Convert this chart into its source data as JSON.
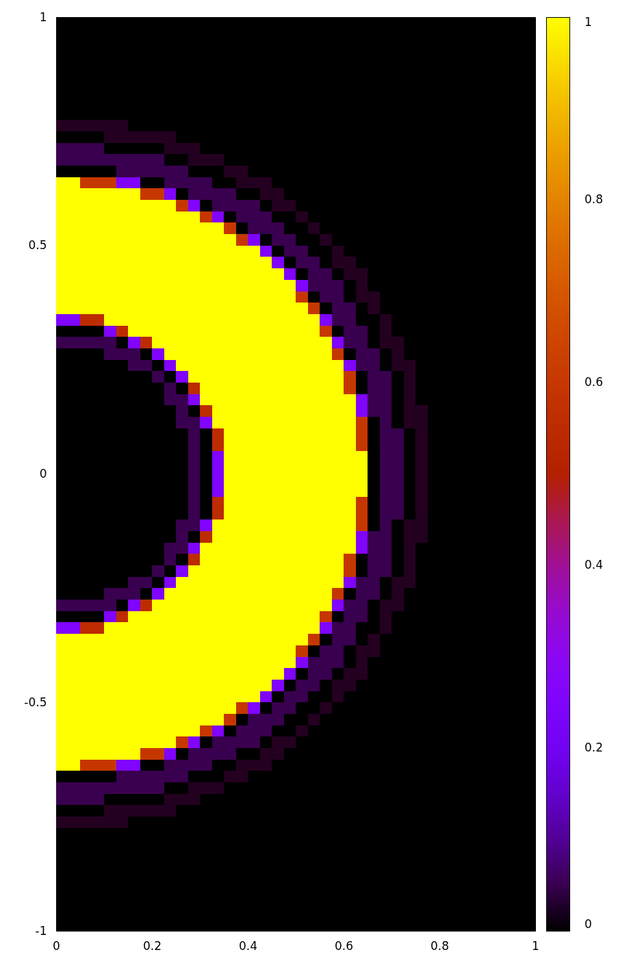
{
  "chart_data": {
    "type": "heatmap",
    "x": [
      0.0125,
      0.0375,
      0.0625,
      0.0875,
      0.1125,
      0.1375,
      0.1625,
      0.1875,
      0.2125,
      0.2375,
      0.2625,
      0.2875,
      0.3125,
      0.3375,
      0.3625,
      0.3875,
      0.4125,
      0.4375,
      0.4625,
      0.4875,
      0.5125,
      0.5375,
      0.5625,
      0.5875,
      0.6125,
      0.6375,
      0.6625,
      0.6875,
      0.7125,
      0.7375,
      0.7625,
      0.7875,
      0.8125,
      0.8375,
      0.8625,
      0.8875,
      0.9125,
      0.9375,
      0.9625,
      0.9875
    ],
    "y": [
      0.9875,
      0.9625,
      0.9375,
      0.9125,
      0.8875,
      0.8625,
      0.8375,
      0.8125,
      0.7875,
      0.7625,
      0.7375,
      0.7125,
      0.6875,
      0.6625,
      0.6375,
      0.6125,
      0.5875,
      0.5625,
      0.5375,
      0.5125,
      0.4875,
      0.4625,
      0.4375,
      0.4125,
      0.3875,
      0.3625,
      0.3375,
      0.3125,
      0.2875,
      0.2625,
      0.2375,
      0.2125,
      0.1875,
      0.1625,
      0.1375,
      0.1125,
      0.0875,
      0.0625,
      0.0375,
      0.0125,
      -0.0125,
      -0.0375,
      -0.0625,
      -0.0875,
      -0.1125,
      -0.1375,
      -0.1625,
      -0.1875,
      -0.2125,
      -0.2375,
      -0.2625,
      -0.2875,
      -0.3125,
      -0.3375,
      -0.3625,
      -0.3875,
      -0.4125,
      -0.4375,
      -0.4625,
      -0.4875,
      -0.5125,
      -0.5375,
      -0.5625,
      -0.5875,
      -0.6125,
      -0.6375,
      -0.6625,
      -0.6875,
      -0.7125,
      -0.7375,
      -0.7625,
      -0.7875,
      -0.8125,
      -0.8375,
      -0.8625,
      -0.8875,
      -0.9125,
      -0.9375,
      -0.9625,
      -0.9875
    ],
    "xlim": [
      0,
      1
    ],
    "xticks": [
      0,
      0.2,
      0.4,
      0.6,
      0.8,
      1
    ],
    "ylim": [
      -1,
      1
    ],
    "yticks": [
      -1,
      -0.5,
      0,
      0.5,
      1
    ],
    "clim": [
      0,
      1
    ],
    "cticks": [
      0,
      0.2,
      0.4,
      0.6,
      0.8,
      1
    ],
    "cells": [
      [
        0,
        0,
        0,
        0,
        0,
        0,
        0,
        0,
        0,
        0,
        0,
        0,
        0,
        0,
        0,
        0,
        0,
        0,
        0,
        0,
        0,
        0,
        0,
        0,
        0,
        0,
        0,
        0,
        0,
        0,
        0,
        0,
        0,
        0,
        0,
        0,
        0,
        0,
        0,
        0
      ],
      [
        0,
        0,
        0,
        0,
        0,
        0,
        0,
        0,
        0,
        0,
        0,
        0,
        0,
        0,
        0,
        0,
        0,
        0,
        0,
        0,
        0,
        0,
        0,
        0,
        0,
        0,
        0,
        0,
        0,
        0,
        0,
        0,
        0,
        0,
        0,
        0,
        0,
        0,
        0,
        0
      ],
      [
        0,
        0,
        0,
        0,
        0,
        0,
        0,
        0,
        0,
        0,
        0,
        0,
        0,
        0,
        0,
        0,
        0,
        0,
        0,
        0,
        0,
        0,
        0,
        0,
        0,
        0,
        0,
        0,
        0,
        0,
        0,
        0,
        0,
        0,
        0,
        0,
        0,
        0,
        0,
        0
      ],
      [
        0,
        0,
        0,
        0,
        0,
        0,
        0,
        0,
        0,
        0,
        0,
        0,
        0,
        0,
        0,
        0,
        0,
        0,
        0,
        0,
        0,
        0,
        0,
        0,
        0,
        0,
        0,
        0,
        0,
        0,
        0,
        0,
        0,
        0,
        0,
        0,
        0,
        0,
        0,
        0
      ],
      [
        0,
        0,
        0,
        0,
        0,
        0,
        0,
        0,
        0,
        0,
        0,
        0,
        0,
        0,
        0,
        0,
        0,
        0,
        0,
        0,
        0,
        0,
        0,
        0,
        0,
        0,
        0,
        0,
        0,
        0,
        0,
        0,
        0,
        0,
        0,
        0,
        0,
        0,
        0,
        0
      ],
      [
        0,
        0,
        0,
        0,
        0,
        0,
        0,
        0,
        0,
        0,
        0,
        0,
        0,
        0,
        0,
        0,
        0,
        0,
        0,
        0,
        0,
        0,
        0,
        0,
        0,
        0,
        0,
        0,
        0,
        0,
        0,
        0,
        0,
        0,
        0,
        0,
        0,
        0,
        0,
        0
      ],
      [
        0,
        0,
        0,
        0,
        0,
        0,
        0,
        0,
        0,
        0,
        0,
        0,
        0,
        0,
        0,
        0,
        0,
        0,
        0,
        0,
        0,
        0,
        0,
        0,
        0,
        0,
        0,
        0,
        0,
        0,
        0,
        0,
        0,
        0,
        0,
        0,
        0,
        0,
        0,
        0
      ],
      [
        0,
        0,
        0,
        0,
        0,
        0,
        0,
        0,
        0,
        0,
        0,
        0,
        0,
        0,
        0,
        0,
        0,
        0,
        0,
        0,
        0,
        0,
        0,
        0,
        0,
        0,
        0,
        0,
        0,
        0,
        0,
        0,
        0,
        0,
        0,
        0,
        0,
        0,
        0,
        0
      ],
      [
        0,
        0,
        0,
        0,
        0,
        0,
        0,
        0,
        0,
        0,
        0,
        0,
        0,
        0,
        0,
        0,
        0,
        0,
        0,
        0,
        0,
        0,
        0,
        0,
        0,
        0,
        0,
        0,
        0,
        0,
        0,
        0,
        0,
        0,
        0,
        0,
        0,
        0,
        0,
        0
      ],
      [
        0.02,
        0.02,
        0.02,
        0.02,
        0.02,
        0.02,
        0,
        0,
        0,
        0,
        0,
        0,
        0,
        0,
        0,
        0,
        0,
        0,
        0,
        0,
        0,
        0,
        0,
        0,
        0,
        0,
        0,
        0,
        0,
        0,
        0,
        0,
        0,
        0,
        0,
        0,
        0,
        0,
        0,
        0
      ],
      [
        0,
        0,
        0,
        0,
        0.02,
        0.02,
        0.02,
        0.02,
        0.02,
        0.02,
        0,
        0,
        0,
        0,
        0,
        0,
        0,
        0,
        0,
        0,
        0,
        0,
        0,
        0,
        0,
        0,
        0,
        0,
        0,
        0,
        0,
        0,
        0,
        0,
        0,
        0,
        0,
        0,
        0,
        0
      ],
      [
        0.05,
        0.05,
        0.05,
        0.05,
        0,
        0,
        0,
        0,
        0,
        0.02,
        0.02,
        0.02,
        0,
        0,
        0,
        0,
        0,
        0,
        0,
        0,
        0,
        0,
        0,
        0,
        0,
        0,
        0,
        0,
        0,
        0,
        0,
        0,
        0,
        0,
        0,
        0,
        0,
        0,
        0,
        0
      ],
      [
        0.05,
        0.05,
        0.05,
        0.05,
        0.05,
        0.05,
        0.05,
        0.05,
        0.05,
        0,
        0,
        0.02,
        0.02,
        0.02,
        0,
        0,
        0,
        0,
        0,
        0,
        0,
        0,
        0,
        0,
        0,
        0,
        0,
        0,
        0,
        0,
        0,
        0,
        0,
        0,
        0,
        0,
        0,
        0,
        0,
        0
      ],
      [
        0,
        0,
        0,
        0,
        0,
        0.05,
        0.05,
        0.05,
        0.05,
        0.05,
        0.05,
        0,
        0,
        0,
        0.02,
        0.02,
        0,
        0,
        0,
        0,
        0,
        0,
        0,
        0,
        0,
        0,
        0,
        0,
        0,
        0,
        0,
        0,
        0,
        0,
        0,
        0,
        0,
        0,
        0,
        0
      ],
      [
        1,
        1,
        0.6,
        0.6,
        0.6,
        0.25,
        0.25,
        0,
        0,
        0.05,
        0.05,
        0.05,
        0.05,
        0,
        0,
        0.02,
        0.02,
        0.02,
        0,
        0,
        0,
        0,
        0,
        0,
        0,
        0,
        0,
        0,
        0,
        0,
        0,
        0,
        0,
        0,
        0,
        0,
        0,
        0,
        0,
        0
      ],
      [
        1,
        1,
        1,
        1,
        1,
        1,
        1,
        0.6,
        0.6,
        0.25,
        0,
        0.05,
        0.05,
        0.05,
        0.05,
        0,
        0,
        0.02,
        0.02,
        0,
        0,
        0,
        0,
        0,
        0,
        0,
        0,
        0,
        0,
        0,
        0,
        0,
        0,
        0,
        0,
        0,
        0,
        0,
        0,
        0
      ],
      [
        1,
        1,
        1,
        1,
        1,
        1,
        1,
        1,
        1,
        1,
        0.6,
        0.25,
        0,
        0.05,
        0.05,
        0.05,
        0.05,
        0,
        0.02,
        0.02,
        0,
        0,
        0,
        0,
        0,
        0,
        0,
        0,
        0,
        0,
        0,
        0,
        0,
        0,
        0,
        0,
        0,
        0,
        0,
        0
      ],
      [
        1,
        1,
        1,
        1,
        1,
        1,
        1,
        1,
        1,
        1,
        1,
        1,
        0.6,
        0.25,
        0,
        0.05,
        0.05,
        0.05,
        0,
        0,
        0.02,
        0,
        0,
        0,
        0,
        0,
        0,
        0,
        0,
        0,
        0,
        0,
        0,
        0,
        0,
        0,
        0,
        0,
        0,
        0
      ],
      [
        1,
        1,
        1,
        1,
        1,
        1,
        1,
        1,
        1,
        1,
        1,
        1,
        1,
        1,
        0.6,
        0,
        0.05,
        0.05,
        0.05,
        0,
        0,
        0.02,
        0,
        0,
        0,
        0,
        0,
        0,
        0,
        0,
        0,
        0,
        0,
        0,
        0,
        0,
        0,
        0,
        0,
        0
      ],
      [
        1,
        1,
        1,
        1,
        1,
        1,
        1,
        1,
        1,
        1,
        1,
        1,
        1,
        1,
        1,
        0.6,
        0.25,
        0,
        0.05,
        0.05,
        0,
        0,
        0.02,
        0,
        0,
        0,
        0,
        0,
        0,
        0,
        0,
        0,
        0,
        0,
        0,
        0,
        0,
        0,
        0,
        0
      ],
      [
        1,
        1,
        1,
        1,
        1,
        1,
        1,
        1,
        1,
        1,
        1,
        1,
        1,
        1,
        1,
        1,
        1,
        0.25,
        0,
        0.05,
        0.05,
        0,
        0,
        0.02,
        0,
        0,
        0,
        0,
        0,
        0,
        0,
        0,
        0,
        0,
        0,
        0,
        0,
        0,
        0,
        0
      ],
      [
        1,
        1,
        1,
        1,
        1,
        1,
        1,
        1,
        1,
        1,
        1,
        1,
        1,
        1,
        1,
        1,
        1,
        1,
        0.25,
        0,
        0.05,
        0.05,
        0,
        0.02,
        0.02,
        0,
        0,
        0,
        0,
        0,
        0,
        0,
        0,
        0,
        0,
        0,
        0,
        0,
        0,
        0
      ],
      [
        1,
        1,
        1,
        1,
        1,
        1,
        1,
        1,
        1,
        1,
        1,
        1,
        1,
        1,
        1,
        1,
        1,
        1,
        1,
        0.25,
        0,
        0.05,
        0.05,
        0,
        0.02,
        0.02,
        0,
        0,
        0,
        0,
        0,
        0,
        0,
        0,
        0,
        0,
        0,
        0,
        0,
        0
      ],
      [
        1,
        1,
        1,
        1,
        1,
        1,
        1,
        1,
        1,
        1,
        1,
        1,
        1,
        1,
        1,
        1,
        1,
        1,
        1,
        1,
        0.25,
        0.05,
        0.05,
        0.05,
        0,
        0.02,
        0,
        0,
        0,
        0,
        0,
        0,
        0,
        0,
        0,
        0,
        0,
        0,
        0,
        0
      ],
      [
        1,
        1,
        1,
        1,
        1,
        1,
        1,
        1,
        1,
        1,
        1,
        1,
        1,
        1,
        1,
        1,
        1,
        1,
        1,
        1,
        0.6,
        0,
        0.05,
        0.05,
        0,
        0.02,
        0.02,
        0,
        0,
        0,
        0,
        0,
        0,
        0,
        0,
        0,
        0,
        0,
        0,
        0
      ],
      [
        1,
        1,
        1,
        1,
        1,
        1,
        1,
        1,
        1,
        1,
        1,
        1,
        1,
        1,
        1,
        1,
        1,
        1,
        1,
        1,
        1,
        0.6,
        0,
        0.05,
        0.05,
        0,
        0.02,
        0,
        0,
        0,
        0,
        0,
        0,
        0,
        0,
        0,
        0,
        0,
        0,
        0
      ],
      [
        0.25,
        0.25,
        0.55,
        0.55,
        1,
        1,
        1,
        1,
        1,
        1,
        1,
        1,
        1,
        1,
        1,
        1,
        1,
        1,
        1,
        1,
        1,
        1,
        0.25,
        0.05,
        0.05,
        0,
        0,
        0.02,
        0,
        0,
        0,
        0,
        0,
        0,
        0,
        0,
        0,
        0,
        0,
        0
      ],
      [
        0,
        0,
        0,
        0,
        0.25,
        0.55,
        1,
        1,
        1,
        1,
        1,
        1,
        1,
        1,
        1,
        1,
        1,
        1,
        1,
        1,
        1,
        1,
        0.6,
        0,
        0.05,
        0.05,
        0,
        0.02,
        0,
        0,
        0,
        0,
        0,
        0,
        0,
        0,
        0,
        0,
        0,
        0
      ],
      [
        0.05,
        0.05,
        0.05,
        0.05,
        0.05,
        0,
        0.25,
        0.55,
        1,
        1,
        1,
        1,
        1,
        1,
        1,
        1,
        1,
        1,
        1,
        1,
        1,
        1,
        1,
        0.25,
        0.05,
        0.05,
        0,
        0.02,
        0.02,
        0,
        0,
        0,
        0,
        0,
        0,
        0,
        0,
        0,
        0,
        0
      ],
      [
        0,
        0,
        0,
        0,
        0.05,
        0.05,
        0.05,
        0,
        0.25,
        1,
        1,
        1,
        1,
        1,
        1,
        1,
        1,
        1,
        1,
        1,
        1,
        1,
        1,
        0.6,
        0,
        0.05,
        0.05,
        0,
        0.02,
        0,
        0,
        0,
        0,
        0,
        0,
        0,
        0,
        0,
        0,
        0
      ],
      [
        0,
        0,
        0,
        0,
        0,
        0,
        0.05,
        0.05,
        0,
        0.25,
        1,
        1,
        1,
        1,
        1,
        1,
        1,
        1,
        1,
        1,
        1,
        1,
        1,
        1,
        0.25,
        0.05,
        0.05,
        0,
        0.02,
        0.02,
        0,
        0,
        0,
        0,
        0,
        0,
        0,
        0,
        0,
        0
      ],
      [
        0,
        0,
        0,
        0,
        0,
        0,
        0,
        0,
        0.05,
        0,
        0.25,
        1,
        1,
        1,
        1,
        1,
        1,
        1,
        1,
        1,
        1,
        1,
        1,
        1,
        0.6,
        0,
        0.05,
        0.05,
        0,
        0.02,
        0,
        0,
        0,
        0,
        0,
        0,
        0,
        0,
        0,
        0
      ],
      [
        0,
        0,
        0,
        0,
        0,
        0,
        0,
        0,
        0,
        0.05,
        0,
        0.55,
        1,
        1,
        1,
        1,
        1,
        1,
        1,
        1,
        1,
        1,
        1,
        1,
        0.6,
        0,
        0.05,
        0.05,
        0,
        0.02,
        0,
        0,
        0,
        0,
        0,
        0,
        0,
        0,
        0,
        0
      ],
      [
        0,
        0,
        0,
        0,
        0,
        0,
        0,
        0,
        0,
        0.05,
        0.05,
        0.25,
        1,
        1,
        1,
        1,
        1,
        1,
        1,
        1,
        1,
        1,
        1,
        1,
        1,
        0.25,
        0.05,
        0.05,
        0,
        0.02,
        0,
        0,
        0,
        0,
        0,
        0,
        0,
        0,
        0,
        0
      ],
      [
        0,
        0,
        0,
        0,
        0,
        0,
        0,
        0,
        0,
        0,
        0.05,
        0,
        0.55,
        1,
        1,
        1,
        1,
        1,
        1,
        1,
        1,
        1,
        1,
        1,
        1,
        0.25,
        0.05,
        0.05,
        0,
        0.02,
        0.02,
        0,
        0,
        0,
        0,
        0,
        0,
        0,
        0,
        0
      ],
      [
        0,
        0,
        0,
        0,
        0,
        0,
        0,
        0,
        0,
        0,
        0.05,
        0.05,
        0.25,
        1,
        1,
        1,
        1,
        1,
        1,
        1,
        1,
        1,
        1,
        1,
        1,
        0.6,
        0,
        0.05,
        0,
        0.02,
        0.02,
        0,
        0,
        0,
        0,
        0,
        0,
        0,
        0,
        0
      ],
      [
        0,
        0,
        0,
        0,
        0,
        0,
        0,
        0,
        0,
        0,
        0,
        0.05,
        0,
        0.55,
        1,
        1,
        1,
        1,
        1,
        1,
        1,
        1,
        1,
        1,
        1,
        0.6,
        0,
        0.05,
        0.05,
        0,
        0.02,
        0,
        0,
        0,
        0,
        0,
        0,
        0,
        0,
        0
      ],
      [
        0,
        0,
        0,
        0,
        0,
        0,
        0,
        0,
        0,
        0,
        0,
        0.05,
        0,
        0.55,
        1,
        1,
        1,
        1,
        1,
        1,
        1,
        1,
        1,
        1,
        1,
        0.6,
        0,
        0.05,
        0.05,
        0,
        0.02,
        0,
        0,
        0,
        0,
        0,
        0,
        0,
        0,
        0
      ],
      [
        0,
        0,
        0,
        0,
        0,
        0,
        0,
        0,
        0,
        0,
        0,
        0.05,
        0,
        0.25,
        1,
        1,
        1,
        1,
        1,
        1,
        1,
        1,
        1,
        1,
        1,
        1,
        0,
        0.05,
        0.05,
        0,
        0.02,
        0,
        0,
        0,
        0,
        0,
        0,
        0,
        0,
        0
      ],
      [
        0,
        0,
        0,
        0,
        0,
        0,
        0,
        0,
        0,
        0,
        0,
        0.05,
        0,
        0.25,
        1,
        1,
        1,
        1,
        1,
        1,
        1,
        1,
        1,
        1,
        1,
        1,
        0,
        0.05,
        0.05,
        0,
        0.02,
        0,
        0,
        0,
        0,
        0,
        0,
        0,
        0,
        0
      ],
      [
        0,
        0,
        0,
        0,
        0,
        0,
        0,
        0,
        0,
        0,
        0,
        0.05,
        0,
        0.25,
        1,
        1,
        1,
        1,
        1,
        1,
        1,
        1,
        1,
        1,
        1,
        1,
        0,
        0.05,
        0.05,
        0,
        0.02,
        0,
        0,
        0,
        0,
        0,
        0,
        0,
        0,
        0
      ],
      [
        0,
        0,
        0,
        0,
        0,
        0,
        0,
        0,
        0,
        0,
        0,
        0.05,
        0,
        0.25,
        1,
        1,
        1,
        1,
        1,
        1,
        1,
        1,
        1,
        1,
        1,
        1,
        0,
        0.05,
        0.05,
        0,
        0.02,
        0,
        0,
        0,
        0,
        0,
        0,
        0,
        0,
        0
      ],
      [
        0,
        0,
        0,
        0,
        0,
        0,
        0,
        0,
        0,
        0,
        0,
        0.05,
        0,
        0.55,
        1,
        1,
        1,
        1,
        1,
        1,
        1,
        1,
        1,
        1,
        1,
        0.6,
        0,
        0.05,
        0.05,
        0,
        0.02,
        0,
        0,
        0,
        0,
        0,
        0,
        0,
        0,
        0
      ],
      [
        0,
        0,
        0,
        0,
        0,
        0,
        0,
        0,
        0,
        0,
        0,
        0.05,
        0,
        0.55,
        1,
        1,
        1,
        1,
        1,
        1,
        1,
        1,
        1,
        1,
        1,
        0.6,
        0,
        0.05,
        0.05,
        0,
        0.02,
        0,
        0,
        0,
        0,
        0,
        0,
        0,
        0,
        0
      ],
      [
        0,
        0,
        0,
        0,
        0,
        0,
        0,
        0,
        0,
        0,
        0.05,
        0.05,
        0.25,
        1,
        1,
        1,
        1,
        1,
        1,
        1,
        1,
        1,
        1,
        1,
        1,
        0.6,
        0,
        0.05,
        0,
        0.02,
        0.02,
        0,
        0,
        0,
        0,
        0,
        0,
        0,
        0,
        0
      ],
      [
        0,
        0,
        0,
        0,
        0,
        0,
        0,
        0,
        0,
        0,
        0.05,
        0,
        0.55,
        1,
        1,
        1,
        1,
        1,
        1,
        1,
        1,
        1,
        1,
        1,
        1,
        0.25,
        0.05,
        0.05,
        0,
        0.02,
        0.02,
        0,
        0,
        0,
        0,
        0,
        0,
        0,
        0,
        0
      ],
      [
        0,
        0,
        0,
        0,
        0,
        0,
        0,
        0,
        0,
        0.05,
        0.05,
        0.25,
        1,
        1,
        1,
        1,
        1,
        1,
        1,
        1,
        1,
        1,
        1,
        1,
        1,
        0.25,
        0.05,
        0.05,
        0,
        0.02,
        0,
        0,
        0,
        0,
        0,
        0,
        0,
        0,
        0,
        0
      ],
      [
        0,
        0,
        0,
        0,
        0,
        0,
        0,
        0,
        0,
        0.05,
        0,
        0.55,
        1,
        1,
        1,
        1,
        1,
        1,
        1,
        1,
        1,
        1,
        1,
        1,
        0.6,
        0,
        0.05,
        0.05,
        0,
        0.02,
        0,
        0,
        0,
        0,
        0,
        0,
        0,
        0,
        0,
        0
      ],
      [
        0,
        0,
        0,
        0,
        0,
        0,
        0,
        0,
        0.05,
        0,
        0.25,
        1,
        1,
        1,
        1,
        1,
        1,
        1,
        1,
        1,
        1,
        1,
        1,
        1,
        0.6,
        0,
        0.05,
        0.05,
        0,
        0.02,
        0,
        0,
        0,
        0,
        0,
        0,
        0,
        0,
        0,
        0
      ],
      [
        0,
        0,
        0,
        0,
        0,
        0,
        0.05,
        0.05,
        0,
        0.25,
        1,
        1,
        1,
        1,
        1,
        1,
        1,
        1,
        1,
        1,
        1,
        1,
        1,
        1,
        0.25,
        0.05,
        0.05,
        0,
        0.02,
        0.02,
        0,
        0,
        0,
        0,
        0,
        0,
        0,
        0,
        0,
        0
      ],
      [
        0,
        0,
        0,
        0,
        0.05,
        0.05,
        0.05,
        0,
        0.25,
        1,
        1,
        1,
        1,
        1,
        1,
        1,
        1,
        1,
        1,
        1,
        1,
        1,
        1,
        0.6,
        0,
        0.05,
        0.05,
        0,
        0.02,
        0,
        0,
        0,
        0,
        0,
        0,
        0,
        0,
        0,
        0,
        0
      ],
      [
        0.05,
        0.05,
        0.05,
        0.05,
        0.05,
        0,
        0.25,
        0.55,
        1,
        1,
        1,
        1,
        1,
        1,
        1,
        1,
        1,
        1,
        1,
        1,
        1,
        1,
        1,
        0.25,
        0.05,
        0.05,
        0,
        0.02,
        0.02,
        0,
        0,
        0,
        0,
        0,
        0,
        0,
        0,
        0,
        0,
        0
      ],
      [
        0,
        0,
        0,
        0,
        0.25,
        0.55,
        1,
        1,
        1,
        1,
        1,
        1,
        1,
        1,
        1,
        1,
        1,
        1,
        1,
        1,
        1,
        1,
        0.6,
        0,
        0.05,
        0.05,
        0,
        0.02,
        0,
        0,
        0,
        0,
        0,
        0,
        0,
        0,
        0,
        0,
        0,
        0
      ],
      [
        0.25,
        0.25,
        0.55,
        0.55,
        1,
        1,
        1,
        1,
        1,
        1,
        1,
        1,
        1,
        1,
        1,
        1,
        1,
        1,
        1,
        1,
        1,
        1,
        0.25,
        0.05,
        0.05,
        0,
        0,
        0.02,
        0,
        0,
        0,
        0,
        0,
        0,
        0,
        0,
        0,
        0,
        0,
        0
      ],
      [
        1,
        1,
        1,
        1,
        1,
        1,
        1,
        1,
        1,
        1,
        1,
        1,
        1,
        1,
        1,
        1,
        1,
        1,
        1,
        1,
        1,
        0.6,
        0,
        0.05,
        0.05,
        0,
        0.02,
        0,
        0,
        0,
        0,
        0,
        0,
        0,
        0,
        0,
        0,
        0,
        0,
        0
      ],
      [
        1,
        1,
        1,
        1,
        1,
        1,
        1,
        1,
        1,
        1,
        1,
        1,
        1,
        1,
        1,
        1,
        1,
        1,
        1,
        1,
        0.6,
        0,
        0.05,
        0.05,
        0,
        0.02,
        0.02,
        0,
        0,
        0,
        0,
        0,
        0,
        0,
        0,
        0,
        0,
        0,
        0,
        0
      ],
      [
        1,
        1,
        1,
        1,
        1,
        1,
        1,
        1,
        1,
        1,
        1,
        1,
        1,
        1,
        1,
        1,
        1,
        1,
        1,
        1,
        0.25,
        0.05,
        0.05,
        0.05,
        0,
        0.02,
        0,
        0,
        0,
        0,
        0,
        0,
        0,
        0,
        0,
        0,
        0,
        0,
        0,
        0
      ],
      [
        1,
        1,
        1,
        1,
        1,
        1,
        1,
        1,
        1,
        1,
        1,
        1,
        1,
        1,
        1,
        1,
        1,
        1,
        1,
        0.25,
        0,
        0.05,
        0.05,
        0,
        0.02,
        0.02,
        0,
        0,
        0,
        0,
        0,
        0,
        0,
        0,
        0,
        0,
        0,
        0,
        0,
        0
      ],
      [
        1,
        1,
        1,
        1,
        1,
        1,
        1,
        1,
        1,
        1,
        1,
        1,
        1,
        1,
        1,
        1,
        1,
        1,
        0.25,
        0,
        0.05,
        0.05,
        0,
        0.02,
        0.02,
        0,
        0,
        0,
        0,
        0,
        0,
        0,
        0,
        0,
        0,
        0,
        0,
        0,
        0,
        0
      ],
      [
        1,
        1,
        1,
        1,
        1,
        1,
        1,
        1,
        1,
        1,
        1,
        1,
        1,
        1,
        1,
        1,
        1,
        0.25,
        0,
        0.05,
        0.05,
        0,
        0,
        0.02,
        0,
        0,
        0,
        0,
        0,
        0,
        0,
        0,
        0,
        0,
        0,
        0,
        0,
        0,
        0,
        0
      ],
      [
        1,
        1,
        1,
        1,
        1,
        1,
        1,
        1,
        1,
        1,
        1,
        1,
        1,
        1,
        1,
        0.6,
        0.25,
        0,
        0.05,
        0.05,
        0,
        0,
        0.02,
        0,
        0,
        0,
        0,
        0,
        0,
        0,
        0,
        0,
        0,
        0,
        0,
        0,
        0,
        0,
        0,
        0
      ],
      [
        1,
        1,
        1,
        1,
        1,
        1,
        1,
        1,
        1,
        1,
        1,
        1,
        1,
        1,
        0.6,
        0,
        0.05,
        0.05,
        0.05,
        0,
        0,
        0.02,
        0,
        0,
        0,
        0,
        0,
        0,
        0,
        0,
        0,
        0,
        0,
        0,
        0,
        0,
        0,
        0,
        0,
        0
      ],
      [
        1,
        1,
        1,
        1,
        1,
        1,
        1,
        1,
        1,
        1,
        1,
        1,
        0.6,
        0.25,
        0,
        0.05,
        0.05,
        0.05,
        0,
        0,
        0.02,
        0,
        0,
        0,
        0,
        0,
        0,
        0,
        0,
        0,
        0,
        0,
        0,
        0,
        0,
        0,
        0,
        0,
        0,
        0
      ],
      [
        1,
        1,
        1,
        1,
        1,
        1,
        1,
        1,
        1,
        1,
        0.6,
        0.25,
        0,
        0.05,
        0.05,
        0.05,
        0.05,
        0,
        0.02,
        0.02,
        0,
        0,
        0,
        0,
        0,
        0,
        0,
        0,
        0,
        0,
        0,
        0,
        0,
        0,
        0,
        0,
        0,
        0,
        0,
        0
      ],
      [
        1,
        1,
        1,
        1,
        1,
        1,
        1,
        0.6,
        0.6,
        0.25,
        0,
        0.05,
        0.05,
        0.05,
        0.05,
        0,
        0,
        0.02,
        0.02,
        0,
        0,
        0,
        0,
        0,
        0,
        0,
        0,
        0,
        0,
        0,
        0,
        0,
        0,
        0,
        0,
        0,
        0,
        0,
        0,
        0
      ],
      [
        1,
        1,
        0.6,
        0.6,
        0.6,
        0.25,
        0.25,
        0,
        0,
        0.05,
        0.05,
        0.05,
        0.05,
        0,
        0,
        0.02,
        0.02,
        0.02,
        0,
        0,
        0,
        0,
        0,
        0,
        0,
        0,
        0,
        0,
        0,
        0,
        0,
        0,
        0,
        0,
        0,
        0,
        0,
        0,
        0,
        0
      ],
      [
        0,
        0,
        0,
        0,
        0,
        0.05,
        0.05,
        0.05,
        0.05,
        0.05,
        0.05,
        0,
        0,
        0,
        0.02,
        0.02,
        0,
        0,
        0,
        0,
        0,
        0,
        0,
        0,
        0,
        0,
        0,
        0,
        0,
        0,
        0,
        0,
        0,
        0,
        0,
        0,
        0,
        0,
        0,
        0
      ],
      [
        0.05,
        0.05,
        0.05,
        0.05,
        0.05,
        0.05,
        0.05,
        0.05,
        0.05,
        0,
        0,
        0.02,
        0.02,
        0.02,
        0,
        0,
        0,
        0,
        0,
        0,
        0,
        0,
        0,
        0,
        0,
        0,
        0,
        0,
        0,
        0,
        0,
        0,
        0,
        0,
        0,
        0,
        0,
        0,
        0,
        0
      ],
      [
        0.05,
        0.05,
        0.05,
        0.05,
        0,
        0,
        0,
        0,
        0,
        0.02,
        0.02,
        0.02,
        0,
        0,
        0,
        0,
        0,
        0,
        0,
        0,
        0,
        0,
        0,
        0,
        0,
        0,
        0,
        0,
        0,
        0,
        0,
        0,
        0,
        0,
        0,
        0,
        0,
        0,
        0,
        0
      ],
      [
        0,
        0,
        0,
        0,
        0.02,
        0.02,
        0.02,
        0.02,
        0.02,
        0.02,
        0,
        0,
        0,
        0,
        0,
        0,
        0,
        0,
        0,
        0,
        0,
        0,
        0,
        0,
        0,
        0,
        0,
        0,
        0,
        0,
        0,
        0,
        0,
        0,
        0,
        0,
        0,
        0,
        0,
        0
      ],
      [
        0.02,
        0.02,
        0.02,
        0.02,
        0.02,
        0.02,
        0,
        0,
        0,
        0,
        0,
        0,
        0,
        0,
        0,
        0,
        0,
        0,
        0,
        0,
        0,
        0,
        0,
        0,
        0,
        0,
        0,
        0,
        0,
        0,
        0,
        0,
        0,
        0,
        0,
        0,
        0,
        0,
        0,
        0
      ],
      [
        0,
        0,
        0,
        0,
        0,
        0,
        0,
        0,
        0,
        0,
        0,
        0,
        0,
        0,
        0,
        0,
        0,
        0,
        0,
        0,
        0,
        0,
        0,
        0,
        0,
        0,
        0,
        0,
        0,
        0,
        0,
        0,
        0,
        0,
        0,
        0,
        0,
        0,
        0,
        0
      ],
      [
        0,
        0,
        0,
        0,
        0,
        0,
        0,
        0,
        0,
        0,
        0,
        0,
        0,
        0,
        0,
        0,
        0,
        0,
        0,
        0,
        0,
        0,
        0,
        0,
        0,
        0,
        0,
        0,
        0,
        0,
        0,
        0,
        0,
        0,
        0,
        0,
        0,
        0,
        0,
        0
      ],
      [
        0,
        0,
        0,
        0,
        0,
        0,
        0,
        0,
        0,
        0,
        0,
        0,
        0,
        0,
        0,
        0,
        0,
        0,
        0,
        0,
        0,
        0,
        0,
        0,
        0,
        0,
        0,
        0,
        0,
        0,
        0,
        0,
        0,
        0,
        0,
        0,
        0,
        0,
        0,
        0
      ],
      [
        0,
        0,
        0,
        0,
        0,
        0,
        0,
        0,
        0,
        0,
        0,
        0,
        0,
        0,
        0,
        0,
        0,
        0,
        0,
        0,
        0,
        0,
        0,
        0,
        0,
        0,
        0,
        0,
        0,
        0,
        0,
        0,
        0,
        0,
        0,
        0,
        0,
        0,
        0,
        0
      ],
      [
        0,
        0,
        0,
        0,
        0,
        0,
        0,
        0,
        0,
        0,
        0,
        0,
        0,
        0,
        0,
        0,
        0,
        0,
        0,
        0,
        0,
        0,
        0,
        0,
        0,
        0,
        0,
        0,
        0,
        0,
        0,
        0,
        0,
        0,
        0,
        0,
        0,
        0,
        0,
        0
      ],
      [
        0,
        0,
        0,
        0,
        0,
        0,
        0,
        0,
        0,
        0,
        0,
        0,
        0,
        0,
        0,
        0,
        0,
        0,
        0,
        0,
        0,
        0,
        0,
        0,
        0,
        0,
        0,
        0,
        0,
        0,
        0,
        0,
        0,
        0,
        0,
        0,
        0,
        0,
        0,
        0
      ],
      [
        0,
        0,
        0,
        0,
        0,
        0,
        0,
        0,
        0,
        0,
        0,
        0,
        0,
        0,
        0,
        0,
        0,
        0,
        0,
        0,
        0,
        0,
        0,
        0,
        0,
        0,
        0,
        0,
        0,
        0,
        0,
        0,
        0,
        0,
        0,
        0,
        0,
        0,
        0,
        0
      ],
      [
        0,
        0,
        0,
        0,
        0,
        0,
        0,
        0,
        0,
        0,
        0,
        0,
        0,
        0,
        0,
        0,
        0,
        0,
        0,
        0,
        0,
        0,
        0,
        0,
        0,
        0,
        0,
        0,
        0,
        0,
        0,
        0,
        0,
        0,
        0,
        0,
        0,
        0,
        0,
        0
      ],
      [
        0,
        0,
        0,
        0,
        0,
        0,
        0,
        0,
        0,
        0,
        0,
        0,
        0,
        0,
        0,
        0,
        0,
        0,
        0,
        0,
        0,
        0,
        0,
        0,
        0,
        0,
        0,
        0,
        0,
        0,
        0,
        0,
        0,
        0,
        0,
        0,
        0,
        0,
        0,
        0
      ]
    ]
  }
}
